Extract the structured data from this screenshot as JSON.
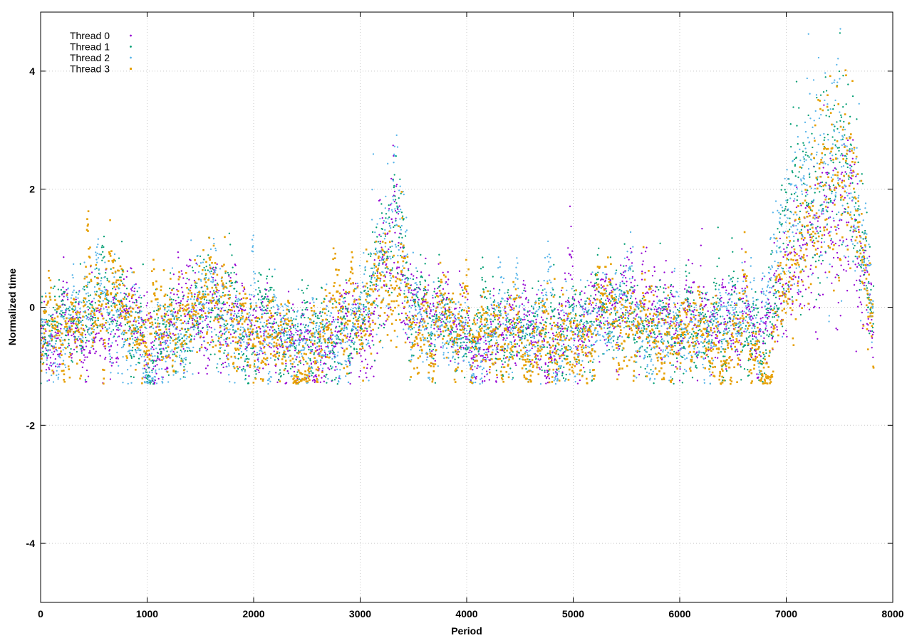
{
  "chart_data": {
    "type": "scatter",
    "xlabel": "Period",
    "ylabel": "Normalized time",
    "xlim": [
      0,
      8000
    ],
    "ylim": [
      -5,
      5
    ],
    "x_ticks": [
      0,
      1000,
      2000,
      3000,
      4000,
      5000,
      6000,
      7000,
      8000
    ],
    "y_ticks": [
      -4,
      -2,
      0,
      2,
      4
    ],
    "grid": true,
    "legend_position": "top-left",
    "x_max_data": 7820,
    "series": [
      {
        "name": "Thread 0",
        "color": "#9400d3",
        "marker": "dot",
        "profile_x": [
          0,
          300,
          700,
          1000,
          1600,
          2000,
          2500,
          3000,
          3200,
          3350,
          3500,
          4000,
          4500,
          5000,
          5500,
          6000,
          6500,
          6800,
          7000,
          7200,
          7400,
          7600,
          7820
        ],
        "profile_mean": [
          -0.6,
          -0.4,
          -0.2,
          -0.4,
          -0.1,
          -0.5,
          -0.5,
          -0.4,
          0.4,
          0.8,
          -0.2,
          -0.5,
          -0.4,
          -0.3,
          0.1,
          -0.3,
          -0.1,
          -0.4,
          0.4,
          1.3,
          1.2,
          1.6,
          -0.3
        ],
        "profile_spread": [
          0.4,
          0.45,
          0.6,
          0.5,
          0.7,
          0.45,
          0.5,
          0.5,
          0.9,
          1.0,
          0.5,
          0.45,
          0.5,
          0.55,
          0.6,
          0.5,
          0.5,
          0.5,
          0.9,
          1.1,
          1.3,
          1.4,
          0.5
        ]
      },
      {
        "name": "Thread 1",
        "color": "#009e73",
        "marker": "dot",
        "profile_x": [
          0,
          300,
          700,
          1000,
          1600,
          2000,
          2500,
          3000,
          3200,
          3350,
          3500,
          4000,
          4500,
          5000,
          5500,
          6000,
          6500,
          6800,
          7000,
          7200,
          7400,
          7600,
          7820
        ],
        "profile_mean": [
          -0.5,
          -0.3,
          0.1,
          -0.5,
          0.1,
          -0.4,
          -0.5,
          -0.3,
          0.7,
          1.4,
          -0.2,
          -0.5,
          -0.3,
          -0.4,
          -0.1,
          -0.4,
          -0.3,
          -0.6,
          1.2,
          2.0,
          2.5,
          2.8,
          -0.3
        ],
        "profile_spread": [
          0.4,
          0.45,
          0.6,
          0.5,
          0.7,
          0.45,
          0.5,
          0.5,
          0.9,
          1.1,
          0.5,
          0.45,
          0.5,
          0.55,
          0.6,
          0.5,
          0.5,
          0.5,
          1.2,
          1.3,
          1.4,
          1.4,
          0.5
        ]
      },
      {
        "name": "Thread 2",
        "color": "#56b4e9",
        "marker": "dot",
        "profile_x": [
          0,
          300,
          700,
          1000,
          1600,
          2000,
          2500,
          3000,
          3200,
          3350,
          3500,
          4000,
          4500,
          5000,
          5500,
          6000,
          6500,
          6800,
          7000,
          7200,
          7400,
          7600,
          7820
        ],
        "profile_mean": [
          -0.6,
          -0.4,
          -0.1,
          -0.6,
          0.0,
          -0.5,
          -0.5,
          -0.4,
          0.9,
          1.8,
          -0.3,
          -0.6,
          -0.4,
          -0.5,
          -0.2,
          -0.4,
          -0.2,
          -0.5,
          1.5,
          2.2,
          2.4,
          2.6,
          -0.4
        ],
        "profile_spread": [
          0.4,
          0.45,
          0.6,
          0.5,
          0.7,
          0.45,
          0.5,
          0.5,
          1.0,
          1.3,
          0.5,
          0.45,
          0.5,
          0.55,
          0.6,
          0.5,
          0.5,
          0.5,
          1.2,
          1.4,
          1.5,
          1.5,
          0.5
        ]
      },
      {
        "name": "Thread 3",
        "color": "#e69f00",
        "marker": "square",
        "profile_x": [
          0,
          300,
          700,
          1000,
          1600,
          2000,
          2500,
          3000,
          3200,
          3350,
          3500,
          4000,
          4500,
          5000,
          5500,
          6000,
          6500,
          6800,
          7000,
          7200,
          7400,
          7600,
          7820
        ],
        "profile_mean": [
          -0.5,
          -0.3,
          0.2,
          -0.6,
          0.3,
          -0.6,
          -0.4,
          -0.3,
          0.2,
          0.3,
          -0.4,
          -0.5,
          -0.5,
          -0.6,
          -0.2,
          -0.5,
          -0.5,
          -0.8,
          0.3,
          1.3,
          2.0,
          2.5,
          -0.5
        ],
        "profile_spread": [
          0.4,
          0.45,
          0.6,
          0.5,
          0.7,
          0.45,
          0.5,
          0.5,
          0.7,
          0.8,
          0.5,
          0.45,
          0.5,
          0.55,
          0.6,
          0.5,
          0.5,
          0.4,
          0.9,
          1.2,
          1.5,
          1.5,
          0.5
        ]
      }
    ]
  }
}
